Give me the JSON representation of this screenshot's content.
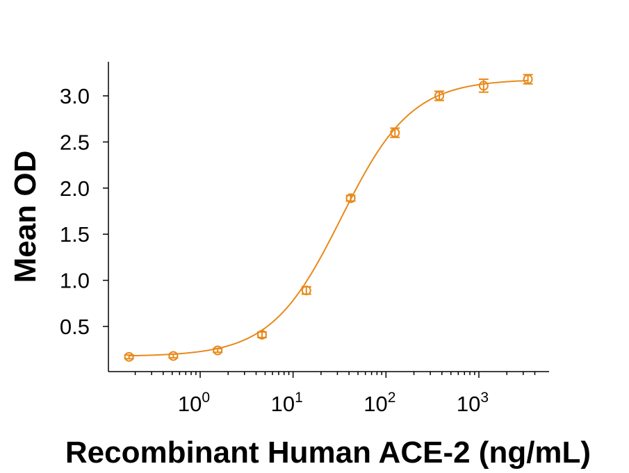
{
  "chart_data": {
    "type": "scatter",
    "title": "",
    "xlabel": "Recombinant Human ACE-2 (ng/mL)",
    "ylabel": "Mean OD",
    "x_scale": "log10",
    "xlim": [
      0.13,
      4500
    ],
    "ylim": [
      0.05,
      3.4
    ],
    "x_tick_labels": [
      {
        "value": 1,
        "base": "10",
        "exp": "0"
      },
      {
        "value": 10,
        "base": "10",
        "exp": "1"
      },
      {
        "value": 100,
        "base": "10",
        "exp": "2"
      },
      {
        "value": 1000,
        "base": "10",
        "exp": "3"
      }
    ],
    "y_ticks": [
      0.5,
      1.0,
      1.5,
      2.0,
      2.5,
      3.0
    ],
    "y_tick_labels": [
      "0.5",
      "1.0",
      "1.5",
      "2.0",
      "2.5",
      "3.0"
    ],
    "grid": false,
    "color": "#E8891A",
    "series": [
      {
        "name": "",
        "x": [
          0.1715,
          0.514,
          1.543,
          4.63,
          13.9,
          41.7,
          125,
          375,
          1125,
          3375
        ],
        "y": [
          0.17,
          0.18,
          0.24,
          0.41,
          0.89,
          1.89,
          2.6,
          3.0,
          3.11,
          3.18
        ],
        "err": [
          0.02,
          0.02,
          0.02,
          0.03,
          0.04,
          0.03,
          0.05,
          0.05,
          0.07,
          0.05
        ],
        "fit": {
          "model": "4PL",
          "bottom": 0.175,
          "top": 3.18,
          "ec50": 33,
          "hill": 1.15
        }
      }
    ]
  }
}
